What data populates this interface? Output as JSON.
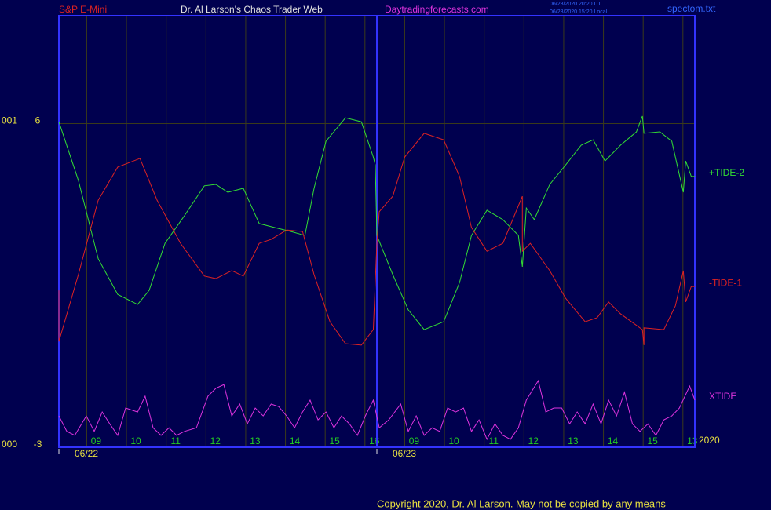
{
  "header": {
    "symbol": "S&P E-Mini",
    "site_name": "Dr. Al Larson's Chaos Trader Web",
    "url": "Daytradingforecasts.com",
    "time_ut": "06/28/2020 20:20 UT",
    "time_local": "06/28/2020 15:20 Local",
    "file": "spectom.txt"
  },
  "footer": {
    "copyright": "Copyright 2020, Dr. Al Larson. May not be copied by any means",
    "year": "2020"
  },
  "chart_data": {
    "type": "line",
    "ylim": [
      -3,
      9
    ],
    "yticks": [
      6,
      -3
    ],
    "left_labels": [
      "001",
      "000"
    ],
    "xlim": [
      0,
      16
    ],
    "xticks": [
      {
        "value": 0.7,
        "label": "09"
      },
      {
        "value": 1.7,
        "label": "10"
      },
      {
        "value": 2.7,
        "label": "11"
      },
      {
        "value": 3.7,
        "label": "12"
      },
      {
        "value": 4.7,
        "label": "13"
      },
      {
        "value": 5.7,
        "label": "14"
      },
      {
        "value": 6.7,
        "label": "15"
      },
      {
        "value": 7.7,
        "label": "16"
      },
      {
        "value": 8.7,
        "label": "09"
      },
      {
        "value": 9.7,
        "label": "10"
      },
      {
        "value": 10.7,
        "label": "11"
      },
      {
        "value": 11.7,
        "label": "12"
      },
      {
        "value": 12.7,
        "label": "13"
      },
      {
        "value": 13.7,
        "label": "14"
      },
      {
        "value": 14.7,
        "label": "15"
      },
      {
        "value": 15.7,
        "label": "13"
      }
    ],
    "dates": [
      {
        "value": 0,
        "label": "06/22"
      },
      {
        "value": 8,
        "label": "06/23"
      }
    ],
    "grid": true,
    "series": [
      {
        "name": "+TIDE-2",
        "color": "#33dd33",
        "x": [
          0,
          0.49,
          0.99,
          1.48,
          1.98,
          2.27,
          2.67,
          3.16,
          3.66,
          3.95,
          4.25,
          4.64,
          5.04,
          5.43,
          5.83,
          6.19,
          6.42,
          6.72,
          7.21,
          7.61,
          7.91,
          7.96,
          8.0,
          8.4,
          8.79,
          9.19,
          9.68,
          10.08,
          10.38,
          10.77,
          11.17,
          11.56,
          11.66,
          11.76,
          11.96,
          12.35,
          12.75,
          13.14,
          13.44,
          13.74,
          14.13,
          14.53,
          14.68,
          14.72,
          15.12,
          15.42,
          15.71,
          15.77,
          15.91,
          16
        ],
        "values": [
          6.05,
          4.42,
          2.24,
          1.25,
          0.97,
          1.36,
          2.67,
          3.44,
          4.27,
          4.31,
          4.09,
          4.2,
          3.22,
          3.11,
          3.0,
          2.89,
          4.2,
          5.51,
          6.16,
          6.05,
          5.07,
          4.85,
          2.89,
          1.8,
          0.82,
          0.27,
          0.49,
          1.58,
          2.89,
          3.59,
          3.33,
          2.89,
          2.02,
          3.65,
          3.33,
          4.31,
          4.85,
          5.4,
          5.55,
          4.96,
          5.4,
          5.77,
          6.21,
          5.73,
          5.77,
          5.51,
          4.09,
          4.96,
          4.53,
          4.53
        ]
      },
      {
        "name": "-TIDE-1",
        "color": "#dd2222",
        "x": [
          0,
          0,
          0.49,
          0.99,
          1.48,
          2.04,
          2.47,
          3.06,
          3.66,
          3.95,
          4.35,
          4.64,
          5.04,
          5.34,
          5.73,
          6.13,
          6.42,
          6.82,
          7.21,
          7.61,
          7.91,
          8.0,
          8.06,
          8.4,
          8.7,
          9.19,
          9.68,
          10.08,
          10.38,
          10.77,
          11.17,
          11.66,
          11.66,
          11.86,
          12.35,
          12.75,
          13.24,
          13.54,
          13.83,
          14.13,
          14.68,
          14.72,
          14.72,
          15.22,
          15.51,
          15.71,
          15.77,
          15.91,
          16
        ],
        "values": [
          1.36,
          -0.06,
          1.8,
          3.87,
          4.79,
          5.03,
          3.87,
          2.67,
          1.76,
          1.69,
          1.91,
          1.76,
          2.67,
          2.78,
          3.04,
          3.0,
          1.8,
          0.49,
          -0.12,
          -0.16,
          0.27,
          2.67,
          3.55,
          3.98,
          5.07,
          5.73,
          5.55,
          4.53,
          3.11,
          2.45,
          2.67,
          3.98,
          2.45,
          2.67,
          1.91,
          1.14,
          0.49,
          0.6,
          1.04,
          0.71,
          0.27,
          -0.16,
          0.32,
          0.27,
          0.93,
          1.91,
          1.04,
          1.47,
          1.47
        ]
      },
      {
        "name": "XTIDE",
        "color": "#dd33dd",
        "x": [
          0,
          0.2,
          0.4,
          0.69,
          0.89,
          1.09,
          1.28,
          1.48,
          1.68,
          1.98,
          2.17,
          2.37,
          2.57,
          2.77,
          2.96,
          3.16,
          3.46,
          3.75,
          3.95,
          4.15,
          4.35,
          4.55,
          4.74,
          4.94,
          5.14,
          5.34,
          5.53,
          5.73,
          5.93,
          6.13,
          6.32,
          6.52,
          6.72,
          6.92,
          7.11,
          7.31,
          7.51,
          7.71,
          7.91,
          8.06,
          8.3,
          8.6,
          8.79,
          8.99,
          9.19,
          9.39,
          9.58,
          9.78,
          9.98,
          10.18,
          10.38,
          10.57,
          10.77,
          10.97,
          11.17,
          11.36,
          11.56,
          11.76,
          12.06,
          12.25,
          12.45,
          12.65,
          12.85,
          13.04,
          13.24,
          13.44,
          13.64,
          13.83,
          14.03,
          14.23,
          14.43,
          14.62,
          14.82,
          15.02,
          15.22,
          15.42,
          15.61,
          15.87,
          16
        ],
        "values": [
          -2.13,
          -2.56,
          -2.67,
          -2.13,
          -2.56,
          -2.02,
          -2.35,
          -2.67,
          -1.91,
          -2.02,
          -1.58,
          -2.46,
          -2.67,
          -2.46,
          -2.67,
          -2.56,
          -2.46,
          -1.58,
          -1.36,
          -1.26,
          -2.13,
          -1.8,
          -2.35,
          -1.91,
          -2.13,
          -1.8,
          -1.87,
          -2.13,
          -2.46,
          -2.02,
          -1.69,
          -2.24,
          -2.02,
          -2.46,
          -2.13,
          -2.35,
          -2.67,
          -2.13,
          -1.69,
          -2.46,
          -2.24,
          -1.8,
          -2.56,
          -2.13,
          -2.67,
          -2.46,
          -2.56,
          -1.91,
          -2.02,
          -1.91,
          -2.56,
          -2.24,
          -2.78,
          -2.35,
          -2.67,
          -2.78,
          -2.46,
          -1.69,
          -1.15,
          -2.02,
          -1.91,
          -1.91,
          -2.35,
          -2.02,
          -2.35,
          -1.8,
          -2.35,
          -1.69,
          -2.13,
          -1.47,
          -2.35,
          -2.56,
          -2.35,
          -2.67,
          -2.24,
          -2.13,
          -1.91,
          -1.3,
          -1.69
        ]
      }
    ]
  }
}
